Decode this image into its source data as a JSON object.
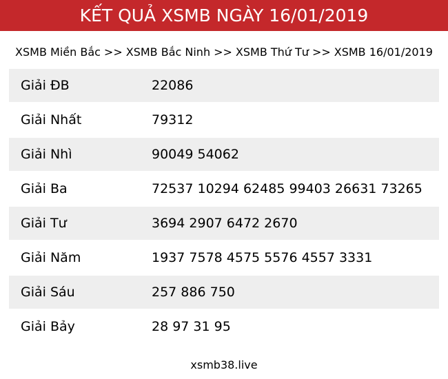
{
  "header": {
    "title": "KẾT QUẢ XSMB NGÀY 16/01/2019"
  },
  "breadcrumb": {
    "separator": ">>",
    "items": [
      {
        "label": "XSMB Miền Bắc"
      },
      {
        "label": "XSMB Bắc Ninh"
      },
      {
        "label": "XSMB Thứ Tư"
      },
      {
        "label": "XSMB 16/01/2019"
      }
    ]
  },
  "results_table": {
    "rows": [
      {
        "label": "Giải ĐB",
        "value": "22086"
      },
      {
        "label": "Giải Nhất",
        "value": "79312"
      },
      {
        "label": "Giải Nhì",
        "value": "90049 54062"
      },
      {
        "label": "Giải Ba",
        "value": "72537 10294 62485 99403 26631 73265"
      },
      {
        "label": "Giải Tư",
        "value": "3694 2907 6472 2670"
      },
      {
        "label": "Giải Năm",
        "value": "1937 7578 4575 5576 4557 3331"
      },
      {
        "label": "Giải Sáu",
        "value": "257 886 750"
      },
      {
        "label": "Giải Bảy",
        "value": "28 97 31 95"
      }
    ]
  },
  "footer": {
    "site": "xsmb38.live"
  },
  "colors": {
    "accent_red": "#c4282b",
    "row_alt_gray": "#eeeeee",
    "header_text": "#ffffff",
    "body_text": "#000000"
  }
}
